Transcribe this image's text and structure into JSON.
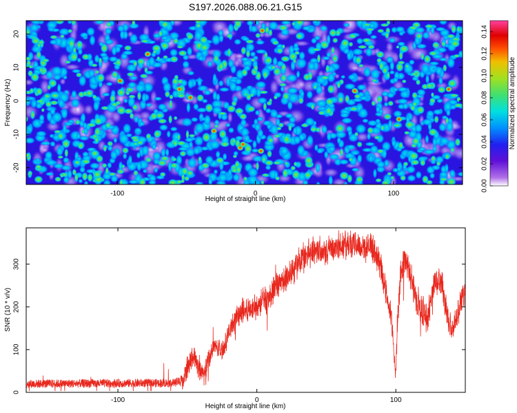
{
  "title": "S197.2026.088.06.21.G15",
  "colors": {
    "line": "#e8281e",
    "frame": "#000000"
  },
  "chart_data": [
    {
      "type": "heatmap",
      "xlabel": "Height of straight line (km)",
      "ylabel": "Frequency (Hz)",
      "xlim": [
        -166,
        150
      ],
      "ylim": [
        -25,
        24
      ],
      "xticks": [
        -100,
        0,
        100
      ],
      "xtick_labels": [
        "-100",
        "0",
        "100"
      ],
      "yticks": [
        -20,
        -10,
        0,
        10,
        20
      ],
      "ytick_labels": [
        "-20",
        "-10",
        "0",
        "10",
        "20"
      ],
      "colorbar": {
        "label": "Normalized spectral amplitude",
        "range": [
          0.0,
          0.15
        ],
        "ticks": [
          0.0,
          0.02,
          0.04,
          0.06,
          0.08,
          0.1,
          0.12,
          0.14
        ],
        "tick_labels": [
          "0.00",
          "0.02",
          "0.04",
          "0.06",
          "0.08",
          "0.10",
          "0.12",
          "0.14"
        ],
        "colormap": [
          "#ffffff",
          "#b070e8",
          "#6010d8",
          "#2020f0",
          "#0090ff",
          "#00e0e0",
          "#40e070",
          "#a0e020",
          "#f0c000",
          "#ff5000",
          "#e00000",
          "#ff40a0"
        ]
      },
      "description_values": {
        "background_level": 0.02,
        "typical_peak": 0.06,
        "max_peak": 0.13
      }
    },
    {
      "type": "line",
      "xlabel": "Height of straight line (km)",
      "ylabel": "SNR (10 * v/v)",
      "xlim": [
        -166,
        150
      ],
      "ylim": [
        0,
        385
      ],
      "xticks": [
        -100,
        0,
        100
      ],
      "xtick_labels": [
        "-100",
        "0",
        "100"
      ],
      "yticks": [
        0,
        100,
        200,
        300
      ],
      "ytick_labels": [
        "0",
        "100",
        "200",
        "300"
      ],
      "series": [
        {
          "name": "SNR",
          "color": "#e8281e",
          "profile_x": [
            -166,
            -60,
            -53,
            -50,
            -45,
            -42,
            -38,
            -35,
            -30,
            -25,
            -20,
            -15,
            -10,
            -5,
            0,
            5,
            10,
            15,
            20,
            25,
            30,
            35,
            40,
            45,
            50,
            55,
            60,
            65,
            70,
            75,
            80,
            85,
            88,
            90,
            92,
            94,
            95,
            96,
            97,
            98,
            99,
            100,
            101,
            103,
            106,
            110,
            115,
            118,
            120,
            123,
            125,
            127,
            129,
            131,
            133,
            135,
            137,
            140,
            142,
            144,
            146,
            148,
            150
          ],
          "profile_y": [
            20,
            22,
            28,
            60,
            90,
            55,
            40,
            80,
            110,
            95,
            140,
            175,
            190,
            195,
            205,
            215,
            225,
            250,
            265,
            285,
            305,
            320,
            330,
            335,
            335,
            340,
            345,
            345,
            348,
            340,
            340,
            330,
            310,
            280,
            250,
            220,
            200,
            185,
            160,
            130,
            80,
            40,
            150,
            260,
            320,
            275,
            215,
            200,
            185,
            170,
            215,
            245,
            260,
            270,
            255,
            220,
            185,
            145,
            150,
            175,
            210,
            230,
            240
          ],
          "noise_amplitude": 18
        }
      ]
    }
  ]
}
